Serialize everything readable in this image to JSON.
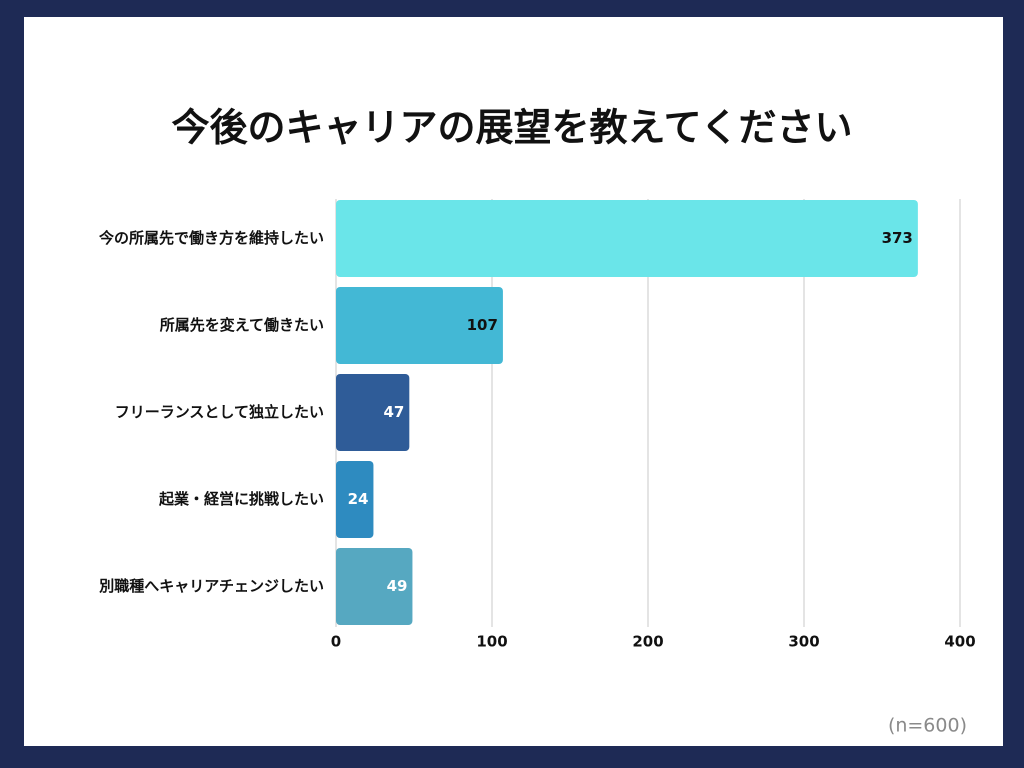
{
  "chart_data": {
    "type": "bar",
    "orientation": "horizontal",
    "title": "今後のキャリアの展望を教えてください",
    "categories": [
      "今の所属先で働き方を維持したい",
      "所属先を変えて働きたい",
      "フリーランスとして独立したい",
      "起業・経営に挑戦したい",
      "別職種へキャリアチェンジしたい"
    ],
    "values": [
      373,
      107,
      47,
      24,
      49
    ],
    "colors": [
      "#6ae5e9",
      "#43b8d5",
      "#2f5c98",
      "#2e8bc0",
      "#56a8c1"
    ],
    "xlim": [
      0,
      400
    ],
    "xticks": [
      0,
      100,
      200,
      300,
      400
    ],
    "grid": true,
    "note": "(n=600)"
  }
}
